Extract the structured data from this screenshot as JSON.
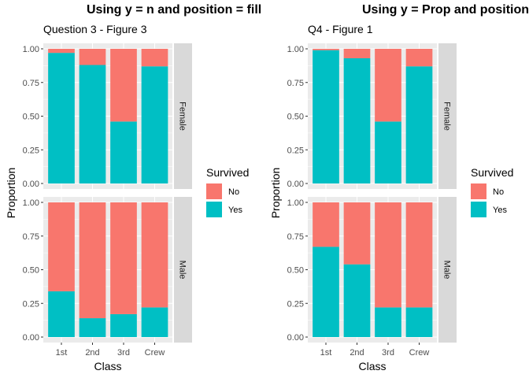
{
  "chart_data": [
    {
      "type": "bar",
      "title": "Using y = n and position = fill",
      "subtitle": "Question 3 - Figure 3",
      "xlabel": "Class",
      "ylabel": "Proportion",
      "categories": [
        "1st",
        "2nd",
        "3rd",
        "Crew"
      ],
      "ylim": [
        0,
        1
      ],
      "yticks": [
        "0.00",
        "0.25",
        "0.50",
        "0.75",
        "1.00"
      ],
      "stacked": true,
      "legend_title": "Survived",
      "legend_position": "right",
      "facets": [
        {
          "label": "Female",
          "series": [
            {
              "name": "No",
              "values": [
                0.03,
                0.12,
                0.54,
                0.13
              ]
            },
            {
              "name": "Yes",
              "values": [
                0.97,
                0.88,
                0.46,
                0.87
              ]
            }
          ]
        },
        {
          "label": "Male",
          "series": [
            {
              "name": "No",
              "values": [
                0.66,
                0.86,
                0.83,
                0.78
              ]
            },
            {
              "name": "Yes",
              "values": [
                0.34,
                0.14,
                0.17,
                0.22
              ]
            }
          ]
        }
      ]
    },
    {
      "type": "bar",
      "title": "Using y = Prop and position",
      "subtitle": "Q4 - Figure 1",
      "xlabel": "Class",
      "ylabel": "Proportion",
      "categories": [
        "1st",
        "2nd",
        "3rd",
        "Crew"
      ],
      "ylim": [
        0,
        1
      ],
      "yticks": [
        "0.00",
        "0.25",
        "0.50",
        "0.75",
        "1.00"
      ],
      "stacked": true,
      "legend_title": "Survived",
      "legend_position": "right",
      "facets": [
        {
          "label": "Female",
          "series": [
            {
              "name": "No",
              "values": [
                0.01,
                0.07,
                0.54,
                0.13
              ]
            },
            {
              "name": "Yes",
              "values": [
                0.99,
                0.93,
                0.46,
                0.87
              ]
            }
          ]
        },
        {
          "label": "Male",
          "series": [
            {
              "name": "No",
              "values": [
                0.33,
                0.46,
                0.78,
                0.78
              ]
            },
            {
              "name": "Yes",
              "values": [
                0.67,
                0.54,
                0.22,
                0.22
              ]
            }
          ]
        }
      ]
    }
  ],
  "colors": {
    "No": "#F8766D",
    "Yes": "#00BFC4",
    "panel_bg": "#EBEBEB",
    "strip_bg": "#D9D9D9",
    "grid": "#FFFFFF"
  }
}
